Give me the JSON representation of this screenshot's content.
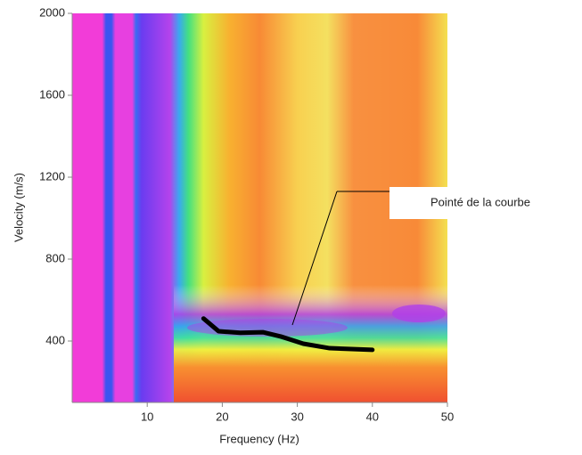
{
  "chart_data": {
    "type": "line",
    "xlabel": "Frequency (Hz)",
    "ylabel": "Velocity (m/s)",
    "xlim": [
      0,
      50
    ],
    "ylim": [
      100,
      2000
    ],
    "xticks": [
      10,
      20,
      30,
      40,
      50
    ],
    "yticks": [
      400,
      800,
      1200,
      1600,
      2000
    ],
    "x": [
      17.5,
      19.5,
      22.4,
      25.4,
      27.8,
      30.8,
      34.3,
      40
    ],
    "series": [
      {
        "color": "#000000",
        "values": [
          510,
          448,
          440,
          443,
          422,
          387,
          365,
          357
        ]
      }
    ],
    "annotation": "Pointé de la courbe"
  }
}
